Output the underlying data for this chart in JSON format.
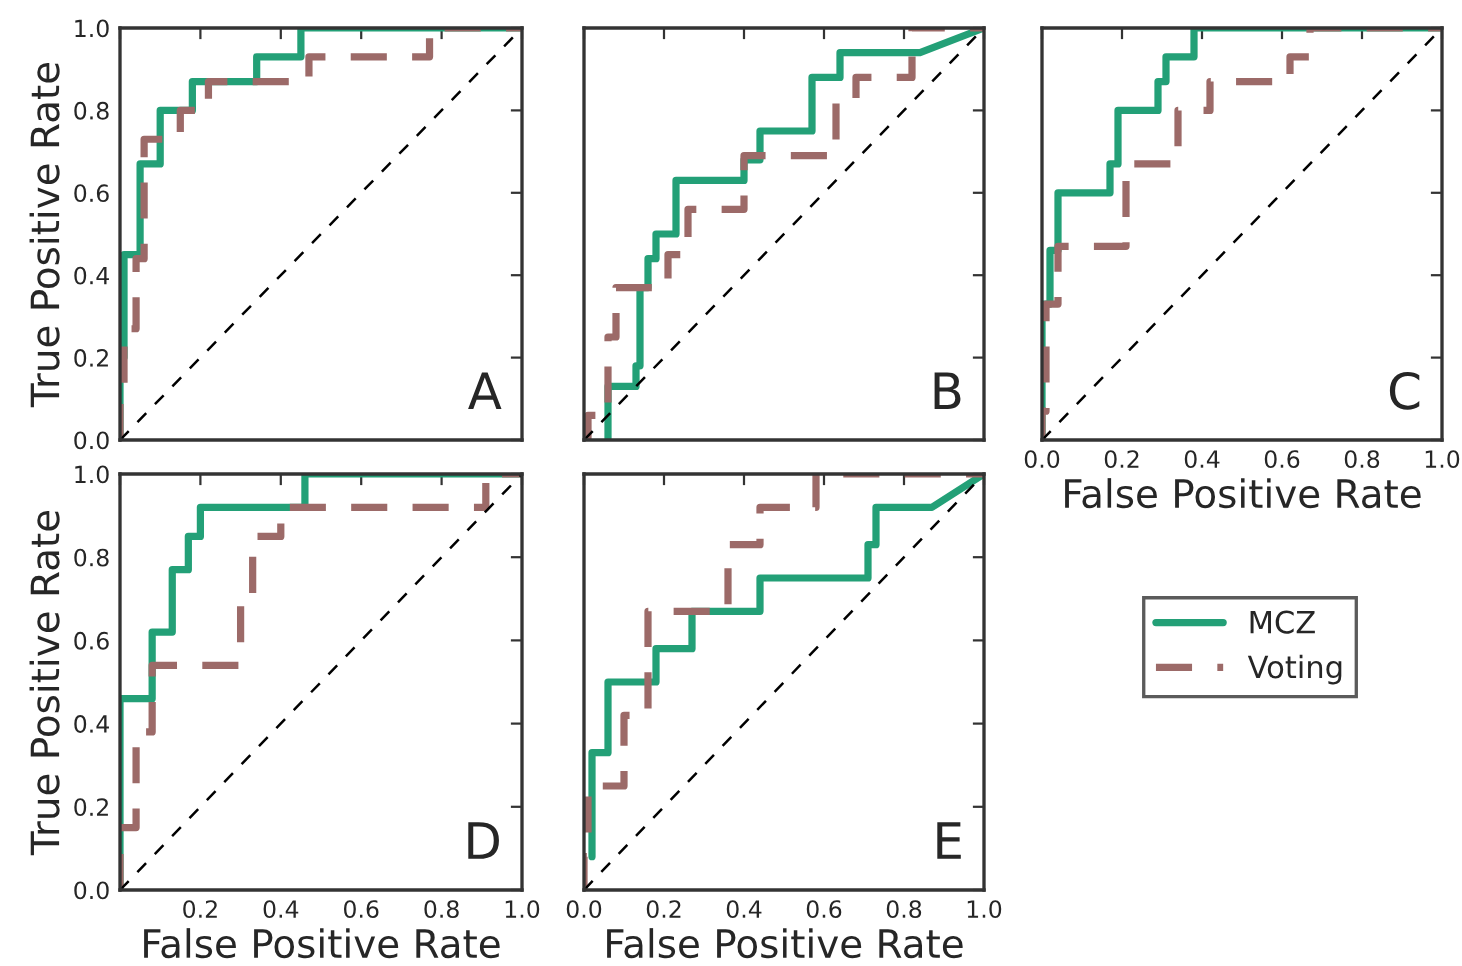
{
  "chart_data": [
    {
      "type": "step",
      "xlim": [
        0,
        1
      ],
      "ylim": [
        0,
        1
      ],
      "tick_labels": "y",
      "ylabel": "True Positive Rate",
      "annotations": [
        "A"
      ],
      "legend": "right",
      "xticks": [
        0,
        0.2,
        0.4,
        0.6,
        0.8,
        1
      ],
      "yticks": [
        {
          "value": 0,
          "label": "0.0"
        },
        {
          "value": 0.2,
          "label": "0.2"
        },
        {
          "value": 0.4,
          "label": "0.4"
        },
        {
          "value": 0.6,
          "label": "0.6"
        },
        {
          "value": 0.8,
          "label": "0.8"
        },
        {
          "value": 1,
          "label": "1.0"
        }
      ],
      "series": [
        {
          "name": "MCZ",
          "color": "#23a077",
          "line_style": "solid",
          "x": [
            0,
            0,
            0.01,
            0.01,
            0.05,
            0.05,
            0.1,
            0.1,
            0.18,
            0.18,
            0.34,
            0.34,
            0.45,
            0.45,
            1
          ],
          "values": [
            0,
            0.2,
            0.2,
            0.45,
            0.45,
            0.67,
            0.67,
            0.8,
            0.8,
            0.87,
            0.87,
            0.93,
            0.93,
            1,
            1
          ]
        },
        {
          "name": "Voting",
          "color": "#9c6a68",
          "line_style": "dashed",
          "x": [
            0,
            0,
            0.01,
            0.01,
            0.04,
            0.04,
            0.06,
            0.06,
            0.15,
            0.15,
            0.22,
            0.22,
            0.47,
            0.47,
            0.77,
            0.77,
            1
          ],
          "values": [
            0,
            0.13,
            0.13,
            0.27,
            0.27,
            0.44,
            0.44,
            0.73,
            0.73,
            0.8,
            0.8,
            0.87,
            0.87,
            0.93,
            0.93,
            1,
            1
          ]
        },
        {
          "type": "line",
          "color": "#000000",
          "line_style": "dashed",
          "x": [
            0,
            1
          ],
          "values": [
            0,
            1
          ]
        }
      ]
    },
    {
      "type": "step",
      "xlim": [
        0,
        1
      ],
      "ylim": [
        0,
        1
      ],
      "tick_labels": false,
      "annotations": [
        "B"
      ],
      "xticks": [
        0,
        0.2,
        0.4,
        0.6,
        0.8,
        1
      ],
      "yticks": [
        0,
        0.2,
        0.4,
        0.6,
        0.8,
        1
      ],
      "series": [
        {
          "name": "MCZ",
          "color": "#23a077",
          "line_style": "solid",
          "x": [
            0.06,
            0.06,
            0.13,
            0.13,
            0.14,
            0.14,
            0.16,
            0.16,
            0.18,
            0.18,
            0.23,
            0.23,
            0.4,
            0.4,
            0.44,
            0.44,
            0.57,
            0.57,
            0.64,
            0.64,
            0.84,
            1
          ],
          "values": [
            0,
            0.13,
            0.13,
            0.18,
            0.18,
            0.37,
            0.37,
            0.44,
            0.44,
            0.5,
            0.5,
            0.63,
            0.63,
            0.68,
            0.68,
            0.75,
            0.75,
            0.88,
            0.88,
            0.94,
            0.94,
            1
          ]
        },
        {
          "name": "Voting",
          "color": "#9c6a68",
          "line_style": "dashed",
          "x": [
            0,
            0.01,
            0.01,
            0.06,
            0.06,
            0.08,
            0.08,
            0.21,
            0.21,
            0.26,
            0.26,
            0.4,
            0.4,
            0.63,
            0.63,
            0.68,
            0.68,
            0.82,
            0.82,
            1
          ],
          "values": [
            0,
            0,
            0.06,
            0.06,
            0.25,
            0.25,
            0.37,
            0.37,
            0.45,
            0.45,
            0.56,
            0.56,
            0.69,
            0.69,
            0.82,
            0.82,
            0.88,
            0.88,
            1,
            1
          ]
        },
        {
          "type": "line",
          "color": "#000000",
          "line_style": "dashed",
          "x": [
            0,
            1
          ],
          "values": [
            0,
            1
          ]
        }
      ]
    },
    {
      "type": "step",
      "xlim": [
        0,
        1
      ],
      "ylim": [
        0,
        1
      ],
      "tick_labels": "x",
      "xlabel": "False Positive Rate",
      "annotations": [
        "C"
      ],
      "xticks": [
        {
          "value": 0,
          "label": "0.0"
        },
        {
          "value": 0.2,
          "label": "0.2"
        },
        {
          "value": 0.4,
          "label": "0.4"
        },
        {
          "value": 0.6,
          "label": "0.6"
        },
        {
          "value": 0.8,
          "label": "0.8"
        },
        {
          "value": 1,
          "label": "1.0"
        }
      ],
      "yticks": [
        0,
        0.2,
        0.4,
        0.6,
        0.8,
        1
      ],
      "series": [
        {
          "name": "MCZ",
          "color": "#23a077",
          "line_style": "solid",
          "x": [
            0,
            0,
            0.02,
            0.02,
            0.04,
            0.04,
            0.17,
            0.17,
            0.19,
            0.19,
            0.29,
            0.29,
            0.31,
            0.31,
            0.38,
            0.38,
            1
          ],
          "values": [
            0,
            0.33,
            0.33,
            0.46,
            0.46,
            0.6,
            0.6,
            0.67,
            0.67,
            0.8,
            0.8,
            0.87,
            0.87,
            0.93,
            0.93,
            1,
            1
          ]
        },
        {
          "name": "Voting",
          "color": "#9c6a68",
          "line_style": "dashed",
          "x": [
            0,
            0,
            0.01,
            0.01,
            0.04,
            0.04,
            0.21,
            0.21,
            0.34,
            0.34,
            0.42,
            0.42,
            0.62,
            0.62,
            0.67,
            0.67,
            1
          ],
          "values": [
            0,
            0.07,
            0.07,
            0.33,
            0.33,
            0.47,
            0.47,
            0.67,
            0.67,
            0.8,
            0.8,
            0.87,
            0.87,
            0.93,
            0.93,
            1,
            1
          ]
        },
        {
          "type": "line",
          "color": "#000000",
          "line_style": "dashed",
          "x": [
            0,
            1
          ],
          "values": [
            0,
            1
          ]
        }
      ]
    },
    {
      "type": "step",
      "xlim": [
        0,
        1
      ],
      "ylim": [
        0,
        1
      ],
      "xlabel": "False Positive Rate",
      "ylabel": "True Positive Rate",
      "annotations": [
        "D"
      ],
      "xticks": [
        {
          "value": 0,
          "label": null
        },
        {
          "value": 0.2,
          "label": "0.2"
        },
        {
          "value": 0.4,
          "label": "0.4"
        },
        {
          "value": 0.6,
          "label": "0.6"
        },
        {
          "value": 0.8,
          "label": "0.8"
        },
        {
          "value": 1,
          "label": "1.0"
        }
      ],
      "yticks": [
        {
          "value": 0,
          "label": "0.0"
        },
        {
          "value": 0.2,
          "label": "0.2"
        },
        {
          "value": 0.4,
          "label": "0.4"
        },
        {
          "value": 0.6,
          "label": "0.6"
        },
        {
          "value": 0.8,
          "label": "0.8"
        },
        {
          "value": 1,
          "label": "1.0"
        }
      ],
      "series": [
        {
          "name": "MCZ",
          "color": "#23a077",
          "line_style": "solid",
          "x": [
            0,
            0,
            0.08,
            0.08,
            0.13,
            0.13,
            0.17,
            0.17,
            0.2,
            0.2,
            0.46,
            0.46,
            1
          ],
          "values": [
            0,
            0.46,
            0.46,
            0.62,
            0.62,
            0.77,
            0.77,
            0.85,
            0.85,
            0.92,
            0.92,
            1,
            1
          ]
        },
        {
          "name": "Voting",
          "color": "#9c6a68",
          "line_style": "dashed",
          "x": [
            0,
            0,
            0.04,
            0.04,
            0.08,
            0.08,
            0.3,
            0.3,
            0.33,
            0.33,
            0.4,
            0.4,
            0.91,
            0.91,
            1
          ],
          "values": [
            0,
            0.15,
            0.15,
            0.38,
            0.38,
            0.54,
            0.54,
            0.69,
            0.69,
            0.85,
            0.85,
            0.92,
            0.92,
            1,
            1
          ]
        },
        {
          "type": "line",
          "color": "#000000",
          "line_style": "dashed",
          "x": [
            0,
            1
          ],
          "values": [
            0,
            1
          ]
        }
      ]
    },
    {
      "type": "step",
      "xlim": [
        0,
        1
      ],
      "ylim": [
        0,
        1
      ],
      "tick_labels": "x",
      "xlabel": "False Positive Rate",
      "annotations": [
        "E"
      ],
      "xticks": [
        {
          "value": 0,
          "label": "0.0"
        },
        {
          "value": 0.2,
          "label": "0.2"
        },
        {
          "value": 0.4,
          "label": "0.4"
        },
        {
          "value": 0.6,
          "label": "0.6"
        },
        {
          "value": 0.8,
          "label": "0.8"
        },
        {
          "value": 1,
          "label": "1.0"
        }
      ],
      "yticks": [
        0,
        0.2,
        0.4,
        0.6,
        0.8,
        1
      ],
      "series": [
        {
          "name": "MCZ",
          "color": "#23a077",
          "line_style": "solid",
          "x": [
            0.02,
            0.02,
            0.06,
            0.06,
            0.18,
            0.18,
            0.27,
            0.27,
            0.44,
            0.44,
            0.71,
            0.71,
            0.73,
            0.73,
            0.87,
            1
          ],
          "values": [
            0.08,
            0.33,
            0.33,
            0.5,
            0.5,
            0.58,
            0.58,
            0.67,
            0.67,
            0.75,
            0.75,
            0.83,
            0.83,
            0.92,
            0.92,
            1
          ]
        },
        {
          "name": "Voting",
          "color": "#9c6a68",
          "line_style": "dashed",
          "x": [
            0,
            0,
            0.01,
            0.01,
            0.1,
            0.1,
            0.16,
            0.16,
            0.36,
            0.36,
            0.44,
            0.44,
            0.58,
            0.58,
            1
          ],
          "values": [
            0,
            0.08,
            0.08,
            0.25,
            0.25,
            0.42,
            0.42,
            0.67,
            0.67,
            0.83,
            0.83,
            0.92,
            0.92,
            1,
            1
          ]
        },
        {
          "type": "line",
          "color": "#000000",
          "line_style": "dashed",
          "x": [
            0,
            1
          ],
          "values": [
            0,
            1
          ]
        }
      ]
    }
  ]
}
